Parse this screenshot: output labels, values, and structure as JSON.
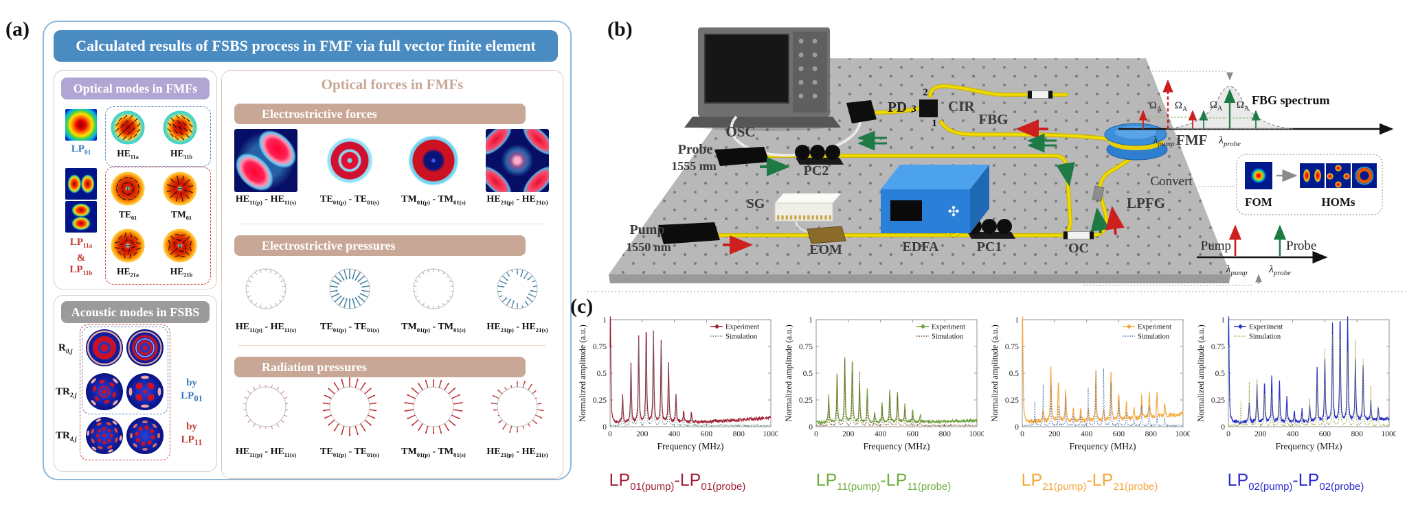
{
  "colors": {
    "panel_a_title_bg": "#4a8cc2",
    "panel_a_border": "#8cb8da",
    "optical_modes_header_bg": "#b1a6d3",
    "acoustic_header_bg": "#9b9b9b",
    "forces_header_bg": "#c9a796",
    "forces_title_color": "#c9a796",
    "lp01_blue": "#3a7abf",
    "lp11_red": "#c03a30",
    "fiber_yellow": "#ecd400",
    "pump_red": "#cc2020",
    "probe_green": "#1e7a45"
  },
  "panel_a": {
    "label": "(a)",
    "title": "Calculated results of FSBS process in FMF via full vector finite element method",
    "optical_modes": {
      "header": "Optical modes in FMFs",
      "lp01": {
        "base": "LP",
        "sub": "01"
      },
      "lp11_line1": {
        "base": "LP",
        "sub": "11a"
      },
      "lp11_amp": "&",
      "lp11_line2": {
        "base": "LP",
        "sub": "11b"
      },
      "he11a": {
        "base": "HE",
        "sub": "11a"
      },
      "he11b": {
        "base": "HE",
        "sub": "11b"
      },
      "te01": {
        "base": "TE",
        "sub": "01"
      },
      "tm01": {
        "base": "TM",
        "sub": "01"
      },
      "he21a": {
        "base": "HE",
        "sub": "21a"
      },
      "he21b": {
        "base": "HE",
        "sub": "21b"
      }
    },
    "acoustic": {
      "header": "Acoustic modes in FSBS",
      "rows": [
        {
          "base": "R",
          "sub": "0,j"
        },
        {
          "base": "TR",
          "sub": "2,j"
        },
        {
          "base": "TR",
          "sub": "4,j"
        }
      ],
      "by1_pre": "by",
      "by1": {
        "base": "LP",
        "sub": "01"
      },
      "by2_pre": "by",
      "by2": {
        "base": "LP",
        "sub": "11"
      }
    },
    "forces": {
      "title": "Optical forces in FMFs",
      "sections": [
        {
          "header": "Electrostrictive forces",
          "kind": "tiles",
          "labels": [
            {
              "b1": "HE",
              "s1": "11(p)",
              "dash": " - ",
              "b2": "HE",
              "s2": "11(s)"
            },
            {
              "b1": "TE",
              "s1": "01(p)",
              "dash": " - ",
              "b2": "TE",
              "s2": "01(s)"
            },
            {
              "b1": "TM",
              "s1": "01(p)",
              "dash": " - ",
              "b2": "TM",
              "s2": "01(s)"
            },
            {
              "b1": "HE",
              "s1": "21(p)",
              "dash": " - ",
              "b2": "HE",
              "s2": "21(s)"
            }
          ]
        },
        {
          "header": "Electrostrictive pressures",
          "kind": "pressure-blue",
          "labels": [
            {
              "b1": "HE",
              "s1": "11(p)",
              "dash": " - ",
              "b2": "HE",
              "s2": "11(s)"
            },
            {
              "b1": "TE",
              "s1": "01(p)",
              "dash": " - ",
              "b2": "TE",
              "s2": "01(s)"
            },
            {
              "b1": "TM",
              "s1": "01(p)",
              "dash": " - ",
              "b2": "TM",
              "s2": "01(s)"
            },
            {
              "b1": "HE",
              "s1": "21(p)",
              "dash": " - ",
              "b2": "HE",
              "s2": "21(s)"
            }
          ]
        },
        {
          "header": "Radiation pressures",
          "kind": "pressure-red",
          "labels": [
            {
              "b1": "HE",
              "s1": "11(p)",
              "dash": " - ",
              "b2": "HE",
              "s2": "11(s)"
            },
            {
              "b1": "TE",
              "s1": "01(p)",
              "dash": " - ",
              "b2": "TE",
              "s2": "01(s)"
            },
            {
              "b1": "TM",
              "s1": "01(p)",
              "dash": " - ",
              "b2": "TM",
              "s2": "01(s)"
            },
            {
              "b1": "HE",
              "s1": "21(p)",
              "dash": " - ",
              "b2": "HE",
              "s2": "21(s)"
            }
          ]
        }
      ]
    }
  },
  "panel_b": {
    "label": "(b)",
    "components": {
      "osc": "OSC",
      "pd": "PD",
      "cir": "CIR",
      "fbg": "FBG",
      "fmf": "FMF",
      "lpfg": "LPFG",
      "oc": "OC",
      "pc1": "PC1",
      "pc2": "PC2",
      "edfa": "EDFA",
      "eom": "EOM",
      "sg": "SG",
      "probe": "Probe",
      "probe_wl": "1555 nm",
      "pump": "Pump",
      "pump_wl": "1550 nm",
      "port1": "1",
      "port2": "2",
      "port3": "3"
    },
    "insets": {
      "fbg_spectrum_title": "FBG spectrum",
      "omega_a": {
        "base": "Ω",
        "sub": "A"
      },
      "lambda_pump": {
        "base": "λ",
        "sub": "pump"
      },
      "lambda_probe": {
        "base": "λ",
        "sub": "probe"
      },
      "convert_label": "Convert",
      "fom_label": "FOM",
      "homs_label": "HOMs",
      "pump_label": "Pump",
      "probe_label": "Probe"
    }
  },
  "panel_c": {
    "label": "(c)"
  },
  "chart_data": [
    {
      "type": "line",
      "title_parts": {
        "b1": "LP",
        "s1": "01(pump)",
        "dash": "-",
        "b2": "LP",
        "s2": "01(probe)"
      },
      "title_color": "#a01f35",
      "xlabel": "Frequency (MHz)",
      "ylabel": "Normalized amplitude (a.u.)",
      "xlim": [
        0,
        1000
      ],
      "ylim": [
        0,
        1
      ],
      "xticks": [
        0,
        200,
        400,
        600,
        800,
        1000
      ],
      "yticks": [
        0,
        0.25,
        0.5,
        0.75,
        1
      ],
      "legend": [
        "Experiment",
        "Simulation"
      ],
      "legend_pos": "top-right",
      "experiment_color": "#a01f35",
      "simulation_color": "#557f7f",
      "experiment_peaks": [
        [
          2,
          1.0
        ],
        [
          78,
          0.26
        ],
        [
          130,
          0.55
        ],
        [
          178,
          0.8
        ],
        [
          225,
          0.91
        ],
        [
          270,
          0.86
        ],
        [
          318,
          0.75
        ],
        [
          364,
          0.57
        ],
        [
          410,
          0.26
        ],
        [
          458,
          0.11
        ],
        [
          506,
          0.08
        ]
      ],
      "simulation_peaks": [
        [
          78,
          0.26
        ],
        [
          130,
          0.55
        ],
        [
          178,
          0.8
        ],
        [
          225,
          0.91
        ],
        [
          270,
          0.86
        ],
        [
          318,
          0.75
        ],
        [
          364,
          0.57
        ],
        [
          410,
          0.26
        ],
        [
          458,
          0.1
        ],
        [
          506,
          0.07
        ]
      ]
    },
    {
      "type": "line",
      "title_parts": {
        "b1": "LP",
        "s1": "11(pump)",
        "dash": "-",
        "b2": "LP",
        "s2": "11(probe)"
      },
      "title_color": "#6fae3e",
      "xlabel": "Frequency (MHz)",
      "ylabel": "Normalized amplitude (a.u.)",
      "xlim": [
        0,
        1000
      ],
      "ylim": [
        0,
        1
      ],
      "xticks": [
        0,
        200,
        400,
        600,
        800,
        1000
      ],
      "yticks": [
        0,
        0.25,
        0.5,
        0.75,
        1
      ],
      "legend": [
        "Experiment",
        "Simulation"
      ],
      "legend_pos": "top-right",
      "experiment_color": "#6da03a",
      "simulation_color": "#7a4a26",
      "experiment_peaks": [
        [
          78,
          0.25
        ],
        [
          130,
          0.44
        ],
        [
          178,
          0.61
        ],
        [
          225,
          0.61
        ],
        [
          270,
          0.37
        ],
        [
          318,
          0.3
        ],
        [
          364,
          0.08
        ],
        [
          410,
          0.19
        ],
        [
          458,
          0.31
        ],
        [
          506,
          0.29
        ],
        [
          552,
          0.16
        ],
        [
          600,
          0.12
        ],
        [
          648,
          0.07
        ]
      ],
      "simulation_peaks": [
        [
          78,
          0.25
        ],
        [
          130,
          0.48
        ],
        [
          178,
          0.61
        ],
        [
          225,
          0.6
        ],
        [
          270,
          0.5
        ],
        [
          318,
          0.25
        ],
        [
          364,
          0.1
        ],
        [
          410,
          0.18
        ],
        [
          458,
          0.3
        ],
        [
          506,
          0.28
        ],
        [
          552,
          0.14
        ],
        [
          600,
          0.1
        ],
        [
          648,
          0.06
        ]
      ]
    },
    {
      "type": "line",
      "title_parts": {
        "b1": "LP",
        "s1": "21(pump)",
        "dash": "-",
        "b2": "LP",
        "s2": "21(probe)"
      },
      "title_color": "#f5a83c",
      "xlabel": "Frequency (MHz)",
      "ylabel": "Normalized amplitude (a.u.)",
      "xlim": [
        0,
        1000
      ],
      "ylim": [
        0,
        1
      ],
      "xticks": [
        0,
        200,
        400,
        600,
        800,
        1000
      ],
      "yticks": [
        0,
        0.25,
        0.5,
        0.75,
        1
      ],
      "legend": [
        "Experiment",
        "Simulation"
      ],
      "legend_pos": "top-right",
      "experiment_color": "#f5a83c",
      "simulation_color": "#4a6fae",
      "experiment_peaks": [
        [
          2,
          1.0
        ],
        [
          130,
          0.12
        ],
        [
          178,
          0.52
        ],
        [
          225,
          0.4
        ],
        [
          270,
          0.3
        ],
        [
          318,
          0.13
        ],
        [
          364,
          0.12
        ],
        [
          410,
          0.1
        ],
        [
          458,
          0.45
        ],
        [
          506,
          0.1
        ],
        [
          552,
          0.46
        ],
        [
          600,
          0.25
        ],
        [
          648,
          0.17
        ],
        [
          695,
          0.1
        ],
        [
          742,
          0.22
        ],
        [
          790,
          0.25
        ],
        [
          838,
          0.22
        ],
        [
          886,
          0.13
        ]
      ],
      "simulation_peaks": [
        [
          78,
          0.22
        ],
        [
          130,
          0.38
        ],
        [
          178,
          0.37
        ],
        [
          225,
          0.23
        ],
        [
          270,
          0.27
        ],
        [
          318,
          0.1
        ],
        [
          364,
          0.1
        ],
        [
          410,
          0.35
        ],
        [
          458,
          0.51
        ],
        [
          506,
          0.53
        ],
        [
          552,
          0.4
        ],
        [
          600,
          0.24
        ],
        [
          648,
          0.12
        ],
        [
          695,
          0.08
        ],
        [
          742,
          0.18
        ],
        [
          790,
          0.18
        ],
        [
          838,
          0.1
        ],
        [
          886,
          0.07
        ]
      ]
    },
    {
      "type": "line",
      "title_parts": {
        "b1": "LP",
        "s1": "02(pump)",
        "dash": "-",
        "b2": "LP",
        "s2": "02(probe)"
      },
      "title_color": "#2a2ad0",
      "xlabel": "Frequency (MHz)",
      "ylabel": "Normalized amplitude (a.u.)",
      "xlim": [
        0,
        1000
      ],
      "ylim": [
        0,
        1
      ],
      "xticks": [
        0,
        200,
        400,
        600,
        800,
        1000
      ],
      "yticks": [
        0,
        0.25,
        0.5,
        0.75,
        1
      ],
      "legend": [
        "Experiment",
        "Simulation"
      ],
      "legend_pos": "top-left",
      "experiment_color": "#2733c8",
      "simulation_color": "#9e9e35",
      "experiment_peaks": [
        [
          2,
          1.0
        ],
        [
          130,
          0.2
        ],
        [
          178,
          0.35
        ],
        [
          225,
          0.38
        ],
        [
          270,
          0.45
        ],
        [
          318,
          0.38
        ],
        [
          364,
          0.25
        ],
        [
          410,
          0.1
        ],
        [
          458,
          0.12
        ],
        [
          506,
          0.15
        ],
        [
          552,
          0.51
        ],
        [
          600,
          0.58
        ],
        [
          648,
          0.93
        ],
        [
          695,
          1.0
        ],
        [
          742,
          0.98
        ],
        [
          790,
          0.57
        ],
        [
          838,
          0.5
        ],
        [
          886,
          0.18
        ],
        [
          932,
          0.12
        ]
      ],
      "simulation_peaks": [
        [
          78,
          0.23
        ],
        [
          130,
          0.4
        ],
        [
          178,
          0.43
        ],
        [
          225,
          0.36
        ],
        [
          270,
          0.3
        ],
        [
          318,
          0.22
        ],
        [
          364,
          0.14
        ],
        [
          410,
          0.08
        ],
        [
          458,
          0.1
        ],
        [
          506,
          0.25
        ],
        [
          552,
          0.43
        ],
        [
          600,
          0.72
        ],
        [
          648,
          0.85
        ],
        [
          695,
          1.0
        ],
        [
          742,
          0.7
        ],
        [
          790,
          0.8
        ],
        [
          838,
          0.62
        ],
        [
          886,
          0.37
        ],
        [
          932,
          0.18
        ]
      ]
    }
  ]
}
